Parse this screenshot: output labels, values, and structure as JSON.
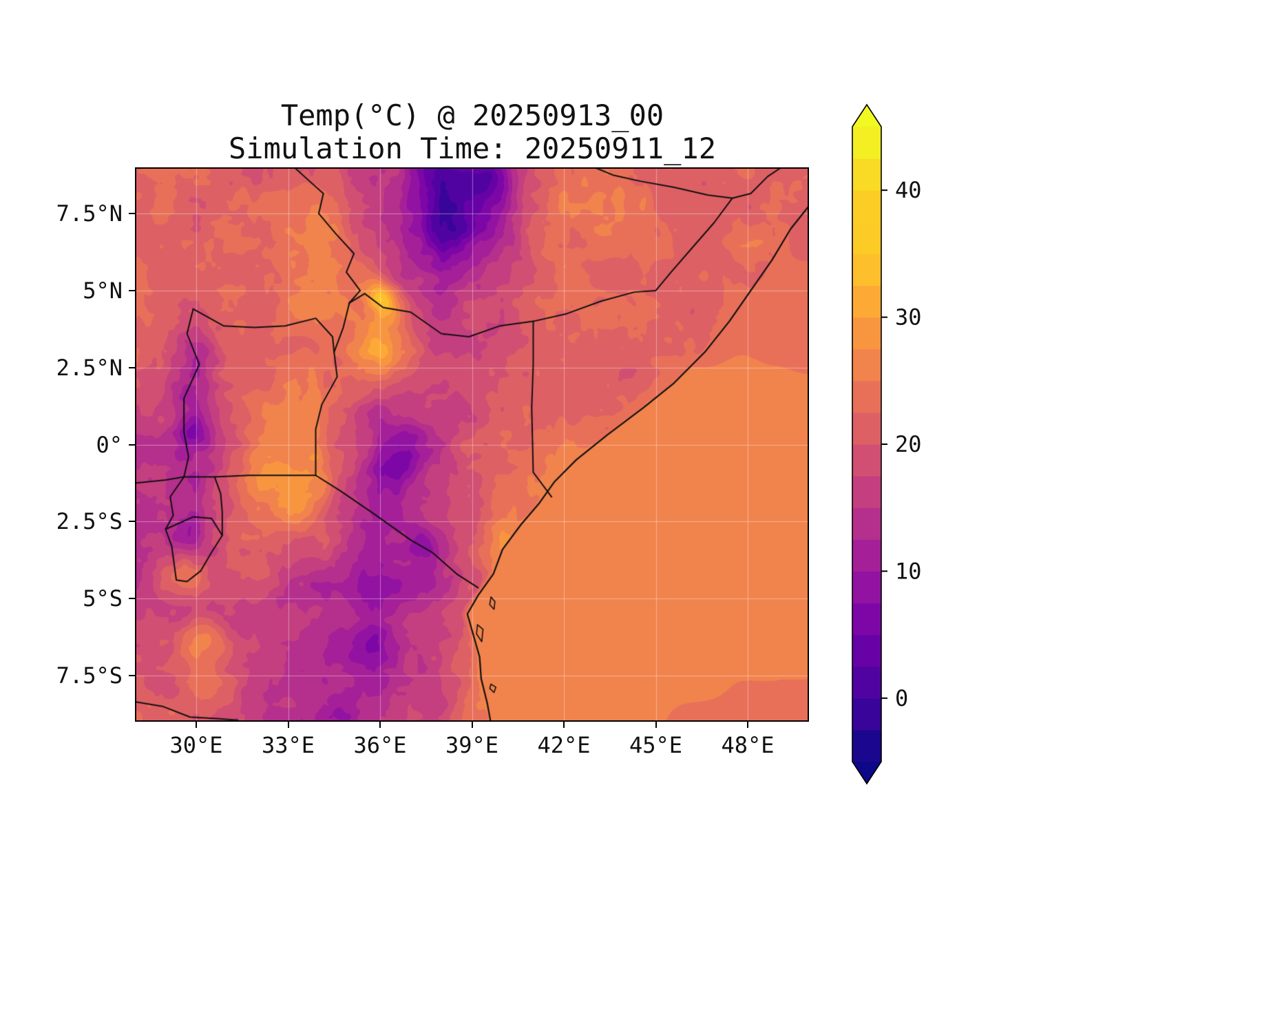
{
  "title": {
    "line1": "Temp(°C) @ 20250913_00",
    "line2": "Simulation Time: 20250911_12"
  },
  "axes": {
    "lon_min": 28,
    "lon_max": 50,
    "lat_min": -9,
    "lat_max": 9,
    "x_ticks": [
      {
        "value": 30,
        "label": "30°E"
      },
      {
        "value": 33,
        "label": "33°E"
      },
      {
        "value": 36,
        "label": "36°E"
      },
      {
        "value": 39,
        "label": "39°E"
      },
      {
        "value": 42,
        "label": "42°E"
      },
      {
        "value": 45,
        "label": "45°E"
      },
      {
        "value": 48,
        "label": "48°E"
      }
    ],
    "y_ticks": [
      {
        "value": 7.5,
        "label": "7.5°N"
      },
      {
        "value": 5,
        "label": "5°N"
      },
      {
        "value": 2.5,
        "label": "2.5°N"
      },
      {
        "value": 0,
        "label": "0°"
      },
      {
        "value": -2.5,
        "label": "2.5°S"
      },
      {
        "value": -5,
        "label": "5°S"
      },
      {
        "value": -7.5,
        "label": "7.5°S"
      }
    ]
  },
  "colorbar": {
    "level_min": -5,
    "level_max": 45,
    "level_step": 2.5,
    "extend": "both",
    "ticks": [
      {
        "value": 40,
        "label": "40"
      },
      {
        "value": 30,
        "label": "30"
      },
      {
        "value": 20,
        "label": "20"
      },
      {
        "value": 10,
        "label": "10"
      },
      {
        "value": 0,
        "label": "0"
      }
    ]
  },
  "colormap": {
    "name": "plasma",
    "stops": [
      [
        0.0,
        "#0d0887"
      ],
      [
        0.1,
        "#46039f"
      ],
      [
        0.2,
        "#7201a8"
      ],
      [
        0.3,
        "#9c179e"
      ],
      [
        0.4,
        "#bd3786"
      ],
      [
        0.5,
        "#d8576b"
      ],
      [
        0.6,
        "#ed7953"
      ],
      [
        0.7,
        "#fb9f3a"
      ],
      [
        0.8,
        "#fdca26"
      ],
      [
        0.9,
        "#fccf25"
      ],
      [
        1.0,
        "#f0f921"
      ]
    ]
  },
  "style": {
    "grid_color": "rgba(255,255,255,0.4)",
    "border_color": "#101010",
    "text_color": "#111111"
  },
  "chart_data": {
    "type": "heatmap",
    "variable": "Temp",
    "unit": "°C",
    "valid_time": "20250913_00",
    "simulation_time": "20250911_12",
    "grid_lons": [
      28,
      30,
      32,
      34,
      36,
      38,
      40,
      42,
      44,
      46,
      48,
      50
    ],
    "grid_lats": [
      9,
      7,
      5,
      3,
      1,
      -1,
      -3,
      -5,
      -7,
      -9
    ],
    "values": [
      [
        22,
        22,
        22,
        21,
        16,
        8,
        12,
        25,
        23,
        22,
        22,
        23
      ],
      [
        22,
        21,
        22,
        25,
        17,
        6,
        15,
        24,
        22.5,
        22,
        22,
        23
      ],
      [
        22,
        21.5,
        22,
        26,
        22,
        12,
        18,
        22,
        22,
        22.5,
        23,
        23
      ],
      [
        21,
        18,
        22,
        24,
        26,
        18,
        21,
        22,
        22,
        22.5,
        25,
        26
      ],
      [
        17,
        14,
        23,
        26,
        13,
        16,
        21,
        22,
        23,
        26,
        26.5,
        26.5
      ],
      [
        14,
        13,
        26,
        27,
        9,
        16,
        22,
        26,
        26.5,
        27,
        27,
        27
      ],
      [
        13,
        15,
        24,
        19,
        11,
        16,
        26,
        27,
        27,
        27,
        27,
        26.5
      ],
      [
        16,
        19,
        17,
        13,
        10,
        15,
        27,
        27,
        26.5,
        26,
        26,
        26
      ],
      [
        21,
        21,
        16,
        14,
        11,
        17,
        27,
        26.5,
        26,
        26,
        25.5,
        25
      ],
      [
        21,
        20,
        16,
        12,
        14,
        18,
        26.5,
        26,
        25.5,
        25,
        24,
        24
      ]
    ],
    "features": [
      [
        38.9,
        7.9,
        0.8,
        -8
      ],
      [
        39.6,
        8.6,
        0.45,
        -6
      ],
      [
        38.3,
        6.9,
        0.6,
        -4
      ],
      [
        37.6,
        8.9,
        0.5,
        -5
      ],
      [
        36.7,
        -0.5,
        0.55,
        -6
      ],
      [
        36.9,
        0.3,
        0.4,
        -4
      ],
      [
        37.35,
        -3.2,
        0.35,
        -6
      ],
      [
        35.7,
        -6.6,
        0.55,
        -4
      ],
      [
        34.8,
        -8.8,
        0.5,
        -4
      ],
      [
        29.9,
        0.4,
        0.35,
        -6
      ],
      [
        30.0,
        2.8,
        0.5,
        -4
      ],
      [
        29.8,
        1.6,
        0.45,
        -4
      ],
      [
        29.7,
        -2.9,
        0.4,
        -4
      ],
      [
        36.3,
        4.4,
        0.4,
        8
      ],
      [
        36.0,
        4.9,
        0.3,
        9
      ],
      [
        36.1,
        3.0,
        0.5,
        4
      ],
      [
        33.3,
        -1.6,
        0.8,
        3
      ],
      [
        29.6,
        -4.2,
        0.45,
        6
      ],
      [
        30.3,
        -6.3,
        0.5,
        6
      ],
      [
        30.9,
        -7.9,
        0.45,
        5
      ]
    ],
    "ocean_profile": [
      [
        9,
        22.5
      ],
      [
        5,
        22.5
      ],
      [
        3,
        24.5
      ],
      [
        1,
        26
      ],
      [
        -1,
        26.8
      ],
      [
        -5,
        27
      ],
      [
        -7,
        26.3
      ],
      [
        -9,
        25.5
      ]
    ],
    "coastline": [
      [
        51.1,
        9.5
      ],
      [
        50.8,
        9.0
      ],
      [
        50.2,
        8.0
      ],
      [
        49.4,
        7.0
      ],
      [
        48.8,
        6.0
      ],
      [
        48.1,
        5.0
      ],
      [
        47.4,
        4.0
      ],
      [
        46.6,
        3.0
      ],
      [
        45.6,
        2.0
      ],
      [
        44.6,
        1.2
      ],
      [
        43.4,
        0.3
      ],
      [
        42.4,
        -0.5
      ],
      [
        41.7,
        -1.2
      ],
      [
        41.2,
        -1.9
      ],
      [
        40.6,
        -2.6
      ],
      [
        40.0,
        -3.4
      ],
      [
        39.7,
        -4.2
      ],
      [
        39.2,
        -4.9
      ],
      [
        38.85,
        -5.5
      ],
      [
        39.05,
        -6.2
      ],
      [
        39.25,
        -6.9
      ],
      [
        39.3,
        -7.6
      ],
      [
        39.5,
        -8.4
      ],
      [
        39.7,
        -9.5
      ]
    ],
    "borders": [
      [
        [
          33.2,
          9.0
        ],
        [
          33.7,
          8.55
        ],
        [
          34.15,
          8.15
        ],
        [
          34.0,
          7.5
        ],
        [
          34.55,
          6.85
        ],
        [
          35.15,
          6.2
        ],
        [
          34.9,
          5.6
        ],
        [
          35.35,
          5.0
        ],
        [
          35.0,
          4.6
        ]
      ],
      [
        [
          29.9,
          4.4
        ],
        [
          30.9,
          3.85
        ],
        [
          31.9,
          3.8
        ],
        [
          32.9,
          3.85
        ],
        [
          33.9,
          4.1
        ],
        [
          34.45,
          3.5
        ],
        [
          34.5,
          3.0
        ]
      ],
      [
        [
          29.9,
          4.4
        ],
        [
          29.7,
          3.6
        ],
        [
          30.1,
          2.6
        ],
        [
          29.6,
          1.5
        ],
        [
          29.6,
          0.4
        ],
        [
          29.75,
          -0.4
        ],
        [
          29.6,
          -1.05
        ]
      ],
      [
        [
          28.0,
          -1.25
        ],
        [
          29.0,
          -1.15
        ],
        [
          29.6,
          -1.05
        ],
        [
          30.6,
          -1.05
        ],
        [
          31.7,
          -1.0
        ],
        [
          32.8,
          -1.0
        ],
        [
          33.9,
          -1.0
        ]
      ],
      [
        [
          35.0,
          4.6
        ],
        [
          34.8,
          3.8
        ],
        [
          34.5,
          3.0
        ],
        [
          34.6,
          2.2
        ],
        [
          34.1,
          1.3
        ],
        [
          33.9,
          0.5
        ],
        [
          33.9,
          -0.3
        ],
        [
          33.9,
          -1.0
        ]
      ],
      [
        [
          35.0,
          4.6
        ],
        [
          35.5,
          4.9
        ],
        [
          36.1,
          4.45
        ],
        [
          37.0,
          4.3
        ],
        [
          38.0,
          3.6
        ],
        [
          38.9,
          3.5
        ],
        [
          39.9,
          3.85
        ],
        [
          41.0,
          4.0
        ]
      ],
      [
        [
          41.0,
          4.0
        ],
        [
          41.0,
          2.6
        ],
        [
          40.95,
          1.2
        ],
        [
          41.0,
          -0.9
        ],
        [
          41.6,
          -1.7
        ]
      ],
      [
        [
          41.0,
          4.0
        ],
        [
          42.1,
          4.25
        ],
        [
          43.2,
          4.65
        ],
        [
          44.3,
          4.95
        ],
        [
          45.0,
          5.0
        ],
        [
          45.5,
          5.6
        ],
        [
          46.2,
          6.4
        ],
        [
          46.9,
          7.2
        ],
        [
          47.5,
          8.0
        ]
      ],
      [
        [
          43.0,
          9.0
        ],
        [
          43.6,
          8.75
        ],
        [
          44.5,
          8.55
        ],
        [
          45.6,
          8.35
        ],
        [
          46.7,
          8.1
        ],
        [
          47.5,
          8.0
        ],
        [
          48.1,
          8.15
        ],
        [
          48.65,
          8.7
        ],
        [
          49.1,
          9.0
        ]
      ],
      [
        [
          33.9,
          -1.0
        ],
        [
          34.7,
          -1.5
        ],
        [
          35.8,
          -2.25
        ],
        [
          37.0,
          -3.1
        ],
        [
          37.7,
          -3.5
        ],
        [
          38.5,
          -4.2
        ],
        [
          39.2,
          -4.65
        ]
      ],
      [
        [
          29.6,
          -1.05
        ],
        [
          29.15,
          -1.7
        ],
        [
          29.25,
          -2.3
        ],
        [
          29.0,
          -2.75
        ],
        [
          29.9,
          -2.35
        ],
        [
          30.5,
          -2.4
        ],
        [
          30.85,
          -2.95
        ]
      ],
      [
        [
          30.85,
          -2.95
        ],
        [
          30.85,
          -2.2
        ],
        [
          30.8,
          -1.6
        ],
        [
          30.6,
          -1.05
        ]
      ],
      [
        [
          29.0,
          -2.75
        ],
        [
          29.2,
          -3.3
        ],
        [
          29.35,
          -4.4
        ],
        [
          29.7,
          -4.45
        ],
        [
          30.15,
          -4.1
        ],
        [
          30.5,
          -3.5
        ],
        [
          30.85,
          -2.95
        ]
      ],
      [
        [
          28.0,
          -8.35
        ],
        [
          28.9,
          -8.5
        ],
        [
          29.8,
          -8.85
        ],
        [
          30.7,
          -8.9
        ],
        [
          31.35,
          -8.95
        ]
      ]
    ],
    "islands": [
      [
        [
          39.62,
          -4.95
        ],
        [
          39.75,
          -5.1
        ],
        [
          39.72,
          -5.35
        ],
        [
          39.58,
          -5.2
        ]
      ],
      [
        [
          39.18,
          -5.85
        ],
        [
          39.36,
          -6.0
        ],
        [
          39.32,
          -6.4
        ],
        [
          39.15,
          -6.15
        ]
      ],
      [
        [
          39.62,
          -7.78
        ],
        [
          39.78,
          -7.88
        ],
        [
          39.72,
          -8.05
        ],
        [
          39.58,
          -7.92
        ]
      ]
    ]
  }
}
